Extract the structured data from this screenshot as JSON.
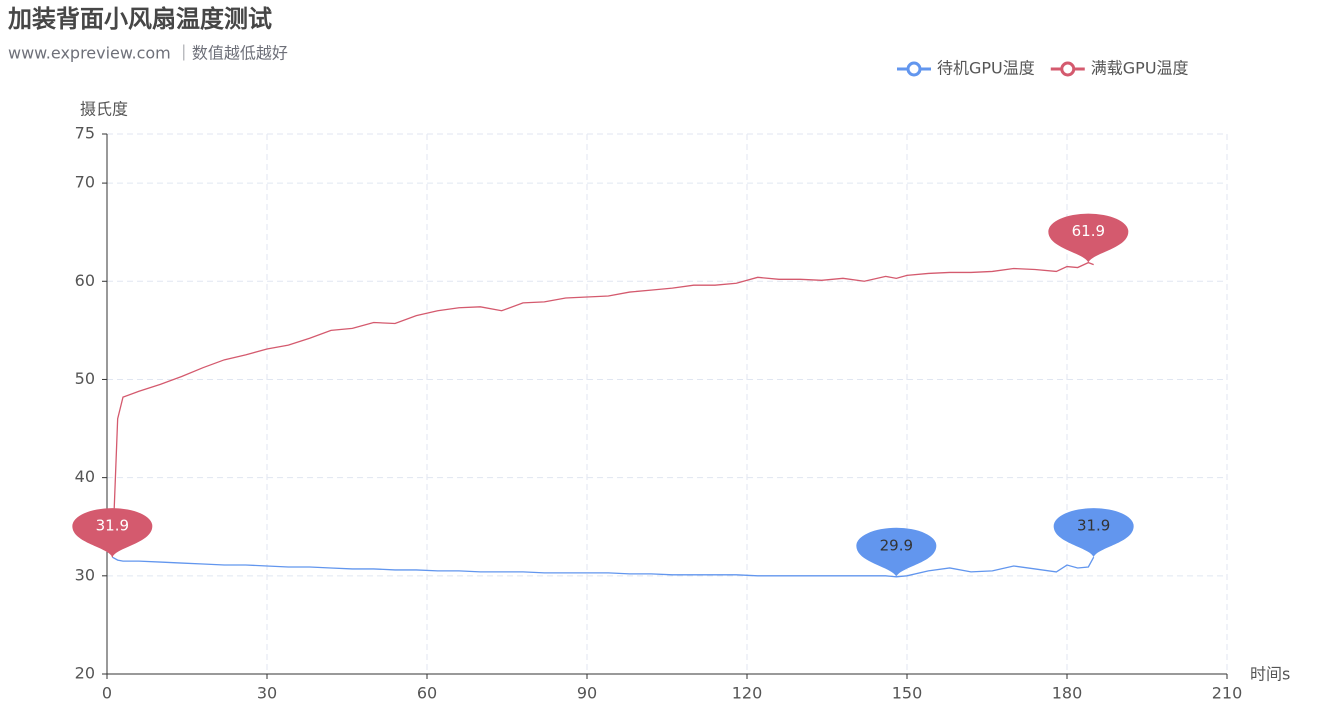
{
  "chart_data": {
    "type": "line",
    "title": "加装背面小风扇温度测试",
    "subtitle": "www.expreview.com ｜数值越低越好",
    "y_label": "摄氏度",
    "x_label": "时间s",
    "xlim": [
      0,
      210
    ],
    "xticks": [
      0,
      30,
      60,
      90,
      120,
      150,
      180,
      210
    ],
    "ylim": [
      20,
      75
    ],
    "yticks": [
      20,
      30,
      40,
      50,
      60,
      70,
      75
    ],
    "grid": true,
    "legend": "top-right",
    "mark_points": [
      "min",
      "max"
    ],
    "x": [
      1,
      2,
      3,
      6,
      10,
      14,
      18,
      22,
      26,
      30,
      34,
      38,
      42,
      46,
      50,
      54,
      58,
      62,
      66,
      70,
      74,
      78,
      82,
      86,
      90,
      94,
      98,
      102,
      106,
      110,
      114,
      118,
      122,
      126,
      130,
      134,
      138,
      142,
      146,
      148,
      150,
      154,
      158,
      162,
      166,
      170,
      174,
      178,
      180,
      182,
      184,
      185
    ],
    "series": [
      {
        "name": "待机GPU温度",
        "color": "#6296ee",
        "values": [
          31.9,
          31.6,
          31.5,
          31.5,
          31.4,
          31.3,
          31.2,
          31.1,
          31.1,
          31.0,
          30.9,
          30.9,
          30.8,
          30.7,
          30.7,
          30.6,
          30.6,
          30.5,
          30.5,
          30.4,
          30.4,
          30.4,
          30.3,
          30.3,
          30.3,
          30.3,
          30.2,
          30.2,
          30.1,
          30.1,
          30.1,
          30.1,
          30.0,
          30.0,
          30.0,
          30.0,
          30.0,
          30.0,
          30.0,
          29.9,
          30.0,
          30.5,
          30.8,
          30.4,
          30.5,
          31.0,
          30.7,
          30.4,
          31.1,
          30.8,
          30.9,
          31.9
        ]
      },
      {
        "name": "满载GPU温度",
        "color": "#d45a6e",
        "values": [
          31.9,
          46.0,
          48.2,
          48.8,
          49.5,
          50.3,
          51.2,
          52.0,
          52.5,
          53.1,
          53.5,
          54.2,
          55.0,
          55.2,
          55.8,
          55.7,
          56.5,
          57.0,
          57.3,
          57.4,
          57.0,
          57.8,
          57.9,
          58.3,
          58.4,
          58.5,
          58.9,
          59.1,
          59.3,
          59.6,
          59.6,
          59.8,
          60.4,
          60.2,
          60.2,
          60.1,
          60.3,
          60.0,
          60.5,
          60.3,
          60.6,
          60.8,
          60.9,
          60.9,
          61.0,
          61.3,
          61.2,
          61.0,
          61.5,
          61.4,
          61.9,
          61.7
        ]
      }
    ]
  }
}
